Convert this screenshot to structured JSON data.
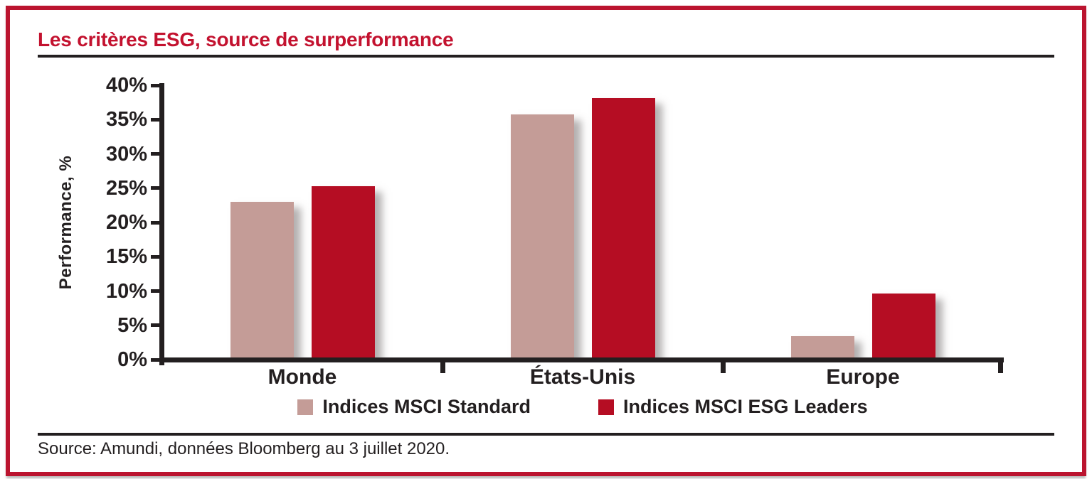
{
  "header": {
    "title": "Les critères ESG, source de surperformance"
  },
  "chart_data": {
    "type": "bar",
    "categories": [
      "Monde",
      "États-Unis",
      "Europe"
    ],
    "series": [
      {
        "name": "Indices MSCI Standard",
        "color": "#c49c97",
        "values": [
          23.0,
          35.8,
          3.4
        ]
      },
      {
        "name": "Indices MSCI ESG Leaders",
        "color": "#b50d23",
        "values": [
          25.3,
          38.1,
          9.6
        ]
      }
    ],
    "ylabel": "Performance, %",
    "ylim": [
      0,
      40
    ],
    "ytick_step": 5,
    "ytick_labels": [
      "0%",
      "5%",
      "10%",
      "15%",
      "20%",
      "25%",
      "30%",
      "35%",
      "40%"
    ],
    "grid": false,
    "legend_position": "bottom"
  },
  "footer": {
    "source": "Source: Amundi, données Bloomberg au 3 juillet 2020."
  },
  "colors": {
    "title_red": "#c3122f",
    "frame_red": "#bb142f",
    "ink_black": "#231f20",
    "bar_standard": "#c49c97",
    "bar_esg_leaders": "#b50d23"
  }
}
